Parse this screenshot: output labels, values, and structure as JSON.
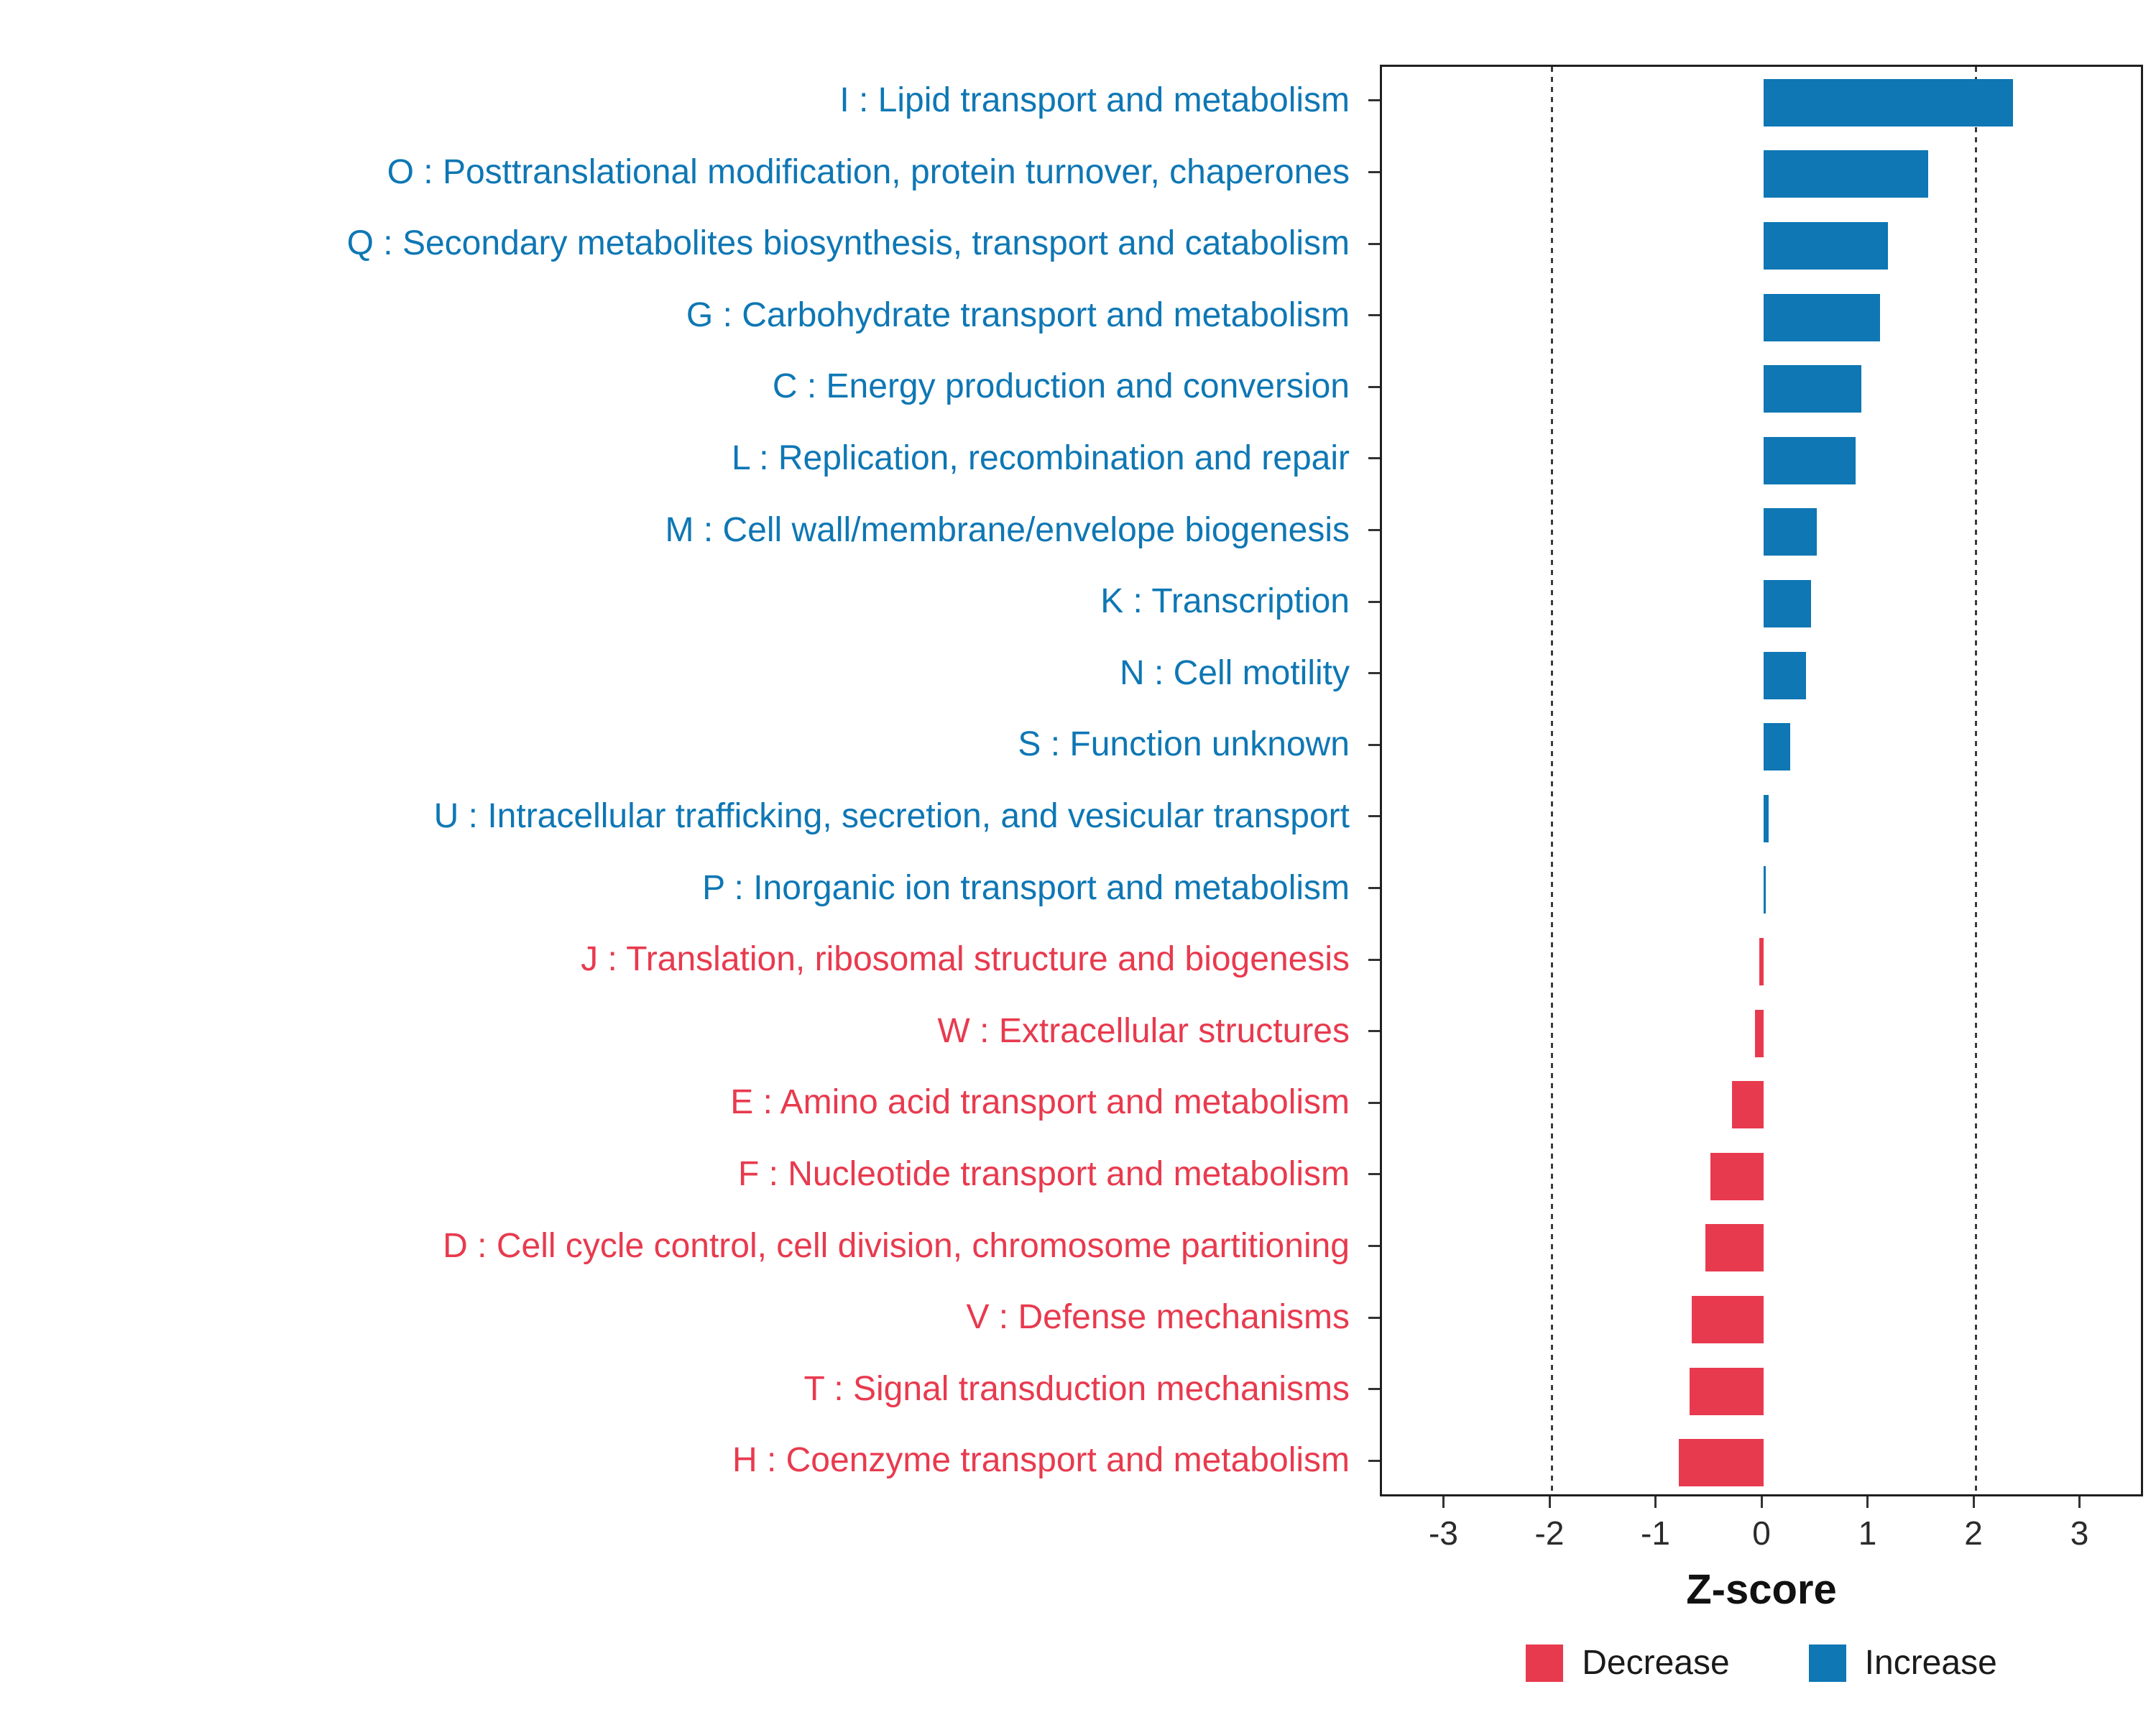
{
  "chart_data": {
    "type": "bar",
    "orientation": "horizontal",
    "title": "",
    "xlabel": "Z-score",
    "ylabel": "",
    "xlim": [
      -3.6,
      3.6
    ],
    "x_ticks": [
      {
        "label": "-3",
        "value": -3
      },
      {
        "label": "-2",
        "value": -2
      },
      {
        "label": "-1",
        "value": -1
      },
      {
        "label": "0",
        "value": 0
      },
      {
        "label": "1",
        "value": 1
      },
      {
        "label": "2",
        "value": 2
      },
      {
        "label": "3",
        "value": 3
      }
    ],
    "reference_lines": [
      -2,
      2
    ],
    "grid": "off",
    "legend_position": "bottom",
    "colors": {
      "increase": "#0E77B4",
      "decrease": "#E83A4E"
    },
    "categories": [
      "I : Lipid transport and metabolism",
      "O : Posttranslational modification, protein turnover, chaperones",
      "Q : Secondary metabolites biosynthesis, transport and catabolism",
      "G : Carbohydrate transport and metabolism",
      "C : Energy production and conversion",
      "L : Replication, recombination and repair",
      "M : Cell wall/membrane/envelope biogenesis",
      "K : Transcription",
      "N : Cell motility",
      "S : Function unknown",
      "U : Intracellular trafficking, secretion, and vesicular transport",
      "P : Inorganic ion transport and metabolism",
      "J : Translation, ribosomal structure and biogenesis",
      "W : Extracellular structures",
      "E : Amino acid transport and metabolism",
      "F : Nucleotide transport and metabolism",
      "D : Cell cycle control, cell division, chromosome partitioning",
      "V : Defense mechanisms",
      "T : Signal transduction mechanisms",
      "H : Coenzyme transport and metabolism"
    ],
    "values": [
      2.35,
      1.55,
      1.17,
      1.1,
      0.92,
      0.87,
      0.5,
      0.45,
      0.4,
      0.25,
      0.05,
      0.02,
      -0.04,
      -0.08,
      -0.3,
      -0.5,
      -0.55,
      -0.68,
      -0.7,
      -0.8
    ],
    "groups": [
      "increase",
      "increase",
      "increase",
      "increase",
      "increase",
      "increase",
      "increase",
      "increase",
      "increase",
      "increase",
      "increase",
      "increase",
      "decrease",
      "decrease",
      "decrease",
      "decrease",
      "decrease",
      "decrease",
      "decrease",
      "decrease"
    ],
    "legend": [
      {
        "label": "Decrease",
        "color_key": "decrease"
      },
      {
        "label": "Increase",
        "color_key": "increase"
      }
    ]
  }
}
